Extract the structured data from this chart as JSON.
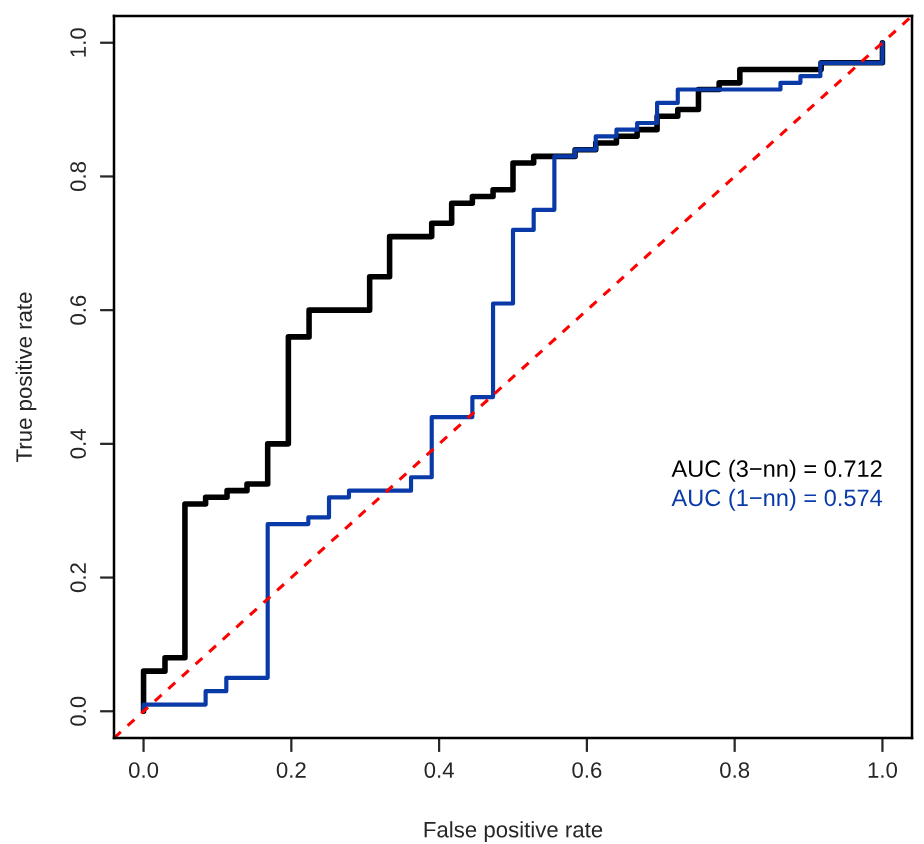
{
  "chart_data": {
    "type": "step",
    "xlabel": "False positive rate",
    "ylabel": "True positive rate",
    "xlim": [
      -0.04,
      1.04
    ],
    "ylim": [
      -0.04,
      1.04
    ],
    "xticks": [
      {
        "value": 0,
        "label": "0.0"
      },
      {
        "value": 0.2,
        "label": "0.2"
      },
      {
        "value": 0.4,
        "label": "0.4"
      },
      {
        "value": 0.6,
        "label": "0.6"
      },
      {
        "value": 0.8,
        "label": "0.8"
      },
      {
        "value": 1,
        "label": "1.0"
      }
    ],
    "yticks": [
      {
        "value": 0,
        "label": "0.0"
      },
      {
        "value": 0.2,
        "label": "0.2"
      },
      {
        "value": 0.4,
        "label": "0.4"
      },
      {
        "value": 0.6,
        "label": "0.6"
      },
      {
        "value": 0.8,
        "label": "0.8"
      },
      {
        "value": 1,
        "label": "1.0"
      }
    ],
    "grid": false,
    "legend": "right",
    "series": [
      {
        "name": "AUC (3−nn) = 0.712",
        "color": "#000000",
        "x": [
          0,
          0,
          0.029,
          0.056,
          0.084,
          0.113,
          0.14,
          0.168,
          0.196,
          0.224,
          0.306,
          0.333,
          0.362,
          0.39,
          0.417,
          0.445,
          0.473,
          0.5,
          0.528,
          0.584,
          0.612,
          0.64,
          0.668,
          0.695,
          0.723,
          0.751,
          0.779,
          0.807,
          0.917,
          1.0
        ],
        "values": [
          0,
          0.06,
          0.08,
          0.31,
          0.32,
          0.33,
          0.34,
          0.4,
          0.56,
          0.6,
          0.65,
          0.71,
          0.71,
          0.73,
          0.76,
          0.77,
          0.78,
          0.82,
          0.83,
          0.84,
          0.85,
          0.86,
          0.87,
          0.89,
          0.9,
          0.93,
          0.94,
          0.96,
          0.97,
          1.0
        ]
      },
      {
        "name": "AUC (1−nn) = 0.574",
        "color": "#0a3aa8",
        "x": [
          0,
          0,
          0.084,
          0.112,
          0.168,
          0.223,
          0.251,
          0.278,
          0.362,
          0.39,
          0.445,
          0.473,
          0.5,
          0.528,
          0.556,
          0.584,
          0.612,
          0.64,
          0.668,
          0.695,
          0.723,
          0.862,
          0.889,
          0.916,
          1.0
        ],
        "values": [
          0,
          0.01,
          0.03,
          0.05,
          0.28,
          0.29,
          0.32,
          0.33,
          0.35,
          0.44,
          0.47,
          0.61,
          0.72,
          0.75,
          0.83,
          0.84,
          0.86,
          0.87,
          0.88,
          0.91,
          0.93,
          0.94,
          0.95,
          0.97,
          1.0
        ]
      },
      {
        "type": "line",
        "line_style": "dashed",
        "color": "#ff0000",
        "x": [
          -0.04,
          1.04
        ],
        "values": [
          -0.04,
          1.04
        ]
      }
    ]
  }
}
